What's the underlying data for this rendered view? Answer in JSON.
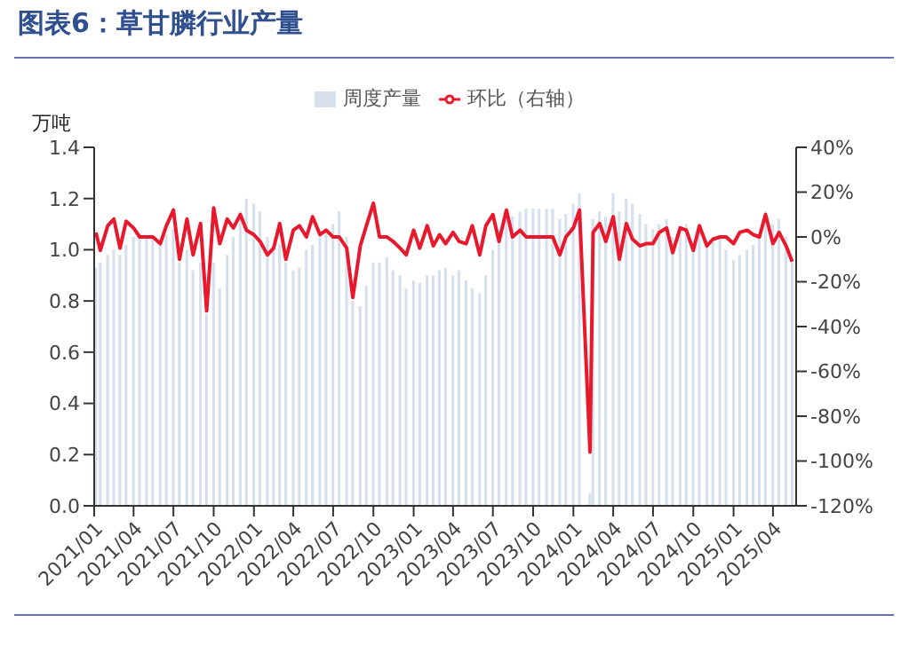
{
  "chart_data": {
    "type": "bar",
    "title": "图表6：草甘膦行业产量",
    "ylabel": "万吨",
    "legend": "top",
    "x": [
      "2021-01-05",
      "2021-01-15",
      "2021-02-01",
      "2021-02-15",
      "2021-03-01",
      "2021-03-15",
      "2021-04-01",
      "2021-04-15",
      "2021-05-01",
      "2021-05-15",
      "2021-06-01",
      "2021-06-15",
      "2021-07-01",
      "2021-07-15",
      "2021-08-01",
      "2021-08-15",
      "2021-09-01",
      "2021-09-15",
      "2021-10-01",
      "2021-10-15",
      "2021-11-01",
      "2021-11-15",
      "2021-12-01",
      "2021-12-15",
      "2022-01-01",
      "2022-01-15",
      "2022-02-01",
      "2022-02-15",
      "2022-03-01",
      "2022-03-15",
      "2022-04-01",
      "2022-04-15",
      "2022-05-01",
      "2022-05-15",
      "2022-06-01",
      "2022-06-15",
      "2022-07-01",
      "2022-07-15",
      "2022-08-01",
      "2022-08-15",
      "2022-09-01",
      "2022-09-15",
      "2022-10-01",
      "2022-10-15",
      "2022-11-01",
      "2022-11-15",
      "2022-12-01",
      "2022-12-15",
      "2023-01-01",
      "2023-01-15",
      "2023-02-01",
      "2023-02-15",
      "2023-03-01",
      "2023-03-15",
      "2023-04-01",
      "2023-04-15",
      "2023-05-01",
      "2023-05-15",
      "2023-06-01",
      "2023-06-15",
      "2023-07-01",
      "2023-07-15",
      "2023-08-01",
      "2023-08-15",
      "2023-09-01",
      "2023-09-15",
      "2023-10-01",
      "2023-10-15",
      "2023-11-01",
      "2023-11-15",
      "2023-12-01",
      "2023-12-15",
      "2024-01-01",
      "2024-01-15",
      "2024-02-08",
      "2024-02-15",
      "2024-03-01",
      "2024-03-15",
      "2024-04-01",
      "2024-04-15",
      "2024-05-01",
      "2024-05-15",
      "2024-06-01",
      "2024-06-15",
      "2024-07-01",
      "2024-07-15",
      "2024-08-01",
      "2024-08-15",
      "2024-09-01",
      "2024-09-15",
      "2024-10-01",
      "2024-10-15",
      "2024-11-01",
      "2024-11-15",
      "2024-12-01",
      "2024-12-15",
      "2025-01-01",
      "2025-01-15",
      "2025-02-01",
      "2025-02-15",
      "2025-03-01",
      "2025-03-15",
      "2025-04-01",
      "2025-04-15",
      "2025-05-01",
      "2025-05-15"
    ],
    "series": [
      {
        "name": "周度产量",
        "color": "#d5e0ec",
        "values": [
          0.93,
          0.95,
          0.98,
          1.0,
          0.98,
          1.02,
          1.05,
          1.05,
          1.05,
          1.05,
          1.02,
          1.06,
          1.08,
          0.95,
          1.0,
          0.92,
          0.95,
          0.75,
          0.95,
          0.85,
          0.98,
          1.05,
          1.15,
          1.2,
          1.18,
          1.15,
          1.05,
          1.0,
          1.02,
          0.95,
          0.92,
          0.93,
          1.0,
          1.02,
          1.05,
          1.08,
          1.1,
          1.15,
          1.05,
          0.8,
          0.78,
          0.86,
          0.95,
          0.95,
          0.97,
          0.92,
          0.9,
          0.85,
          0.88,
          0.87,
          0.9,
          0.9,
          0.92,
          0.93,
          0.9,
          0.92,
          0.88,
          0.85,
          0.83,
          0.9,
          1.0,
          1.05,
          1.12,
          1.13,
          1.15,
          1.16,
          1.16,
          1.16,
          1.16,
          1.16,
          1.12,
          1.14,
          1.18,
          1.22,
          0.05,
          1.12,
          1.15,
          1.13,
          1.22,
          1.15,
          1.2,
          1.18,
          1.14,
          1.1,
          1.08,
          1.1,
          1.12,
          1.05,
          1.08,
          1.1,
          1.03,
          1.08,
          1.04,
          1.03,
          1.05,
          1.0,
          0.96,
          0.98,
          1.0,
          1.02,
          1.05,
          1.15,
          1.1,
          1.12,
          1.05,
          0.96
        ]
      },
      {
        "name": "环比（右轴）",
        "type": "line",
        "axis": "y2",
        "color": "#e8192c",
        "values": [
          2,
          -6,
          5,
          8,
          -5,
          7,
          4,
          0,
          0,
          0,
          -3,
          5,
          12,
          -10,
          8,
          -8,
          6,
          -33,
          13,
          -3,
          8,
          4,
          10,
          3,
          1,
          -2,
          -8,
          -5,
          6,
          -10,
          3,
          5,
          0,
          9,
          1,
          3,
          0,
          0,
          -5,
          -27,
          -4,
          5,
          15,
          0,
          0,
          -2,
          -5,
          -8,
          3,
          -5,
          5,
          -4,
          1,
          -3,
          2,
          -2,
          -3,
          5,
          -8,
          5,
          10,
          -2,
          12,
          0,
          3,
          0,
          0,
          0,
          0,
          0,
          -8,
          0,
          4,
          12,
          -96,
          2,
          6,
          -2,
          9,
          -10,
          6,
          -1,
          -4,
          -3,
          -3,
          2,
          4,
          -7,
          4,
          3,
          -6,
          5,
          -4,
          -1,
          0,
          0,
          -3,
          2,
          3,
          1,
          0,
          10,
          -3,
          2,
          -4,
          -11
        ]
      }
    ],
    "xlim": [
      "2021-01-01",
      "2025-05-24"
    ],
    "xticks": [
      {
        "value": "2021-01-01",
        "label": "2021/01"
      },
      {
        "value": "2021-04-01",
        "label": "2021/04"
      },
      {
        "value": "2021-07-01",
        "label": "2021/07"
      },
      {
        "value": "2021-10-01",
        "label": "2021/10"
      },
      {
        "value": "2022-01-01",
        "label": "2022/01"
      },
      {
        "value": "2022-04-01",
        "label": "2022/04"
      },
      {
        "value": "2022-07-01",
        "label": "2022/07"
      },
      {
        "value": "2022-10-01",
        "label": "2022/10"
      },
      {
        "value": "2023-01-01",
        "label": "2023/01"
      },
      {
        "value": "2023-04-01",
        "label": "2023/04"
      },
      {
        "value": "2023-07-01",
        "label": "2023/07"
      },
      {
        "value": "2023-10-01",
        "label": "2023/10"
      },
      {
        "value": "2024-01-01",
        "label": "2024/01"
      },
      {
        "value": "2024-04-01",
        "label": "2024/04"
      },
      {
        "value": "2024-07-01",
        "label": "2024/07"
      },
      {
        "value": "2024-10-01",
        "label": "2024/10"
      },
      {
        "value": "2025-01-01",
        "label": "2025/01"
      },
      {
        "value": "2025-04-01",
        "label": "2025/04"
      }
    ],
    "ylim": [
      0,
      1.4
    ],
    "yticks": [
      {
        "value": 0,
        "label": "0.0"
      },
      0.2,
      0.4,
      0.6,
      0.8,
      {
        "value": 1,
        "label": "1.0"
      },
      1.2,
      1.4
    ],
    "y2lim": [
      -120,
      40
    ],
    "y2ticks": [
      {
        "value": -120,
        "label": "-120%"
      },
      {
        "value": -100,
        "label": "-100%"
      },
      {
        "value": -80,
        "label": "-80%"
      },
      {
        "value": -60,
        "label": "-60%"
      },
      {
        "value": -40,
        "label": "-40%"
      },
      {
        "value": -20,
        "label": "-20%"
      },
      {
        "value": 0,
        "label": "0%"
      },
      {
        "value": 20,
        "label": "20%"
      },
      {
        "value": 40,
        "label": "40%"
      }
    ],
    "grid": false
  }
}
